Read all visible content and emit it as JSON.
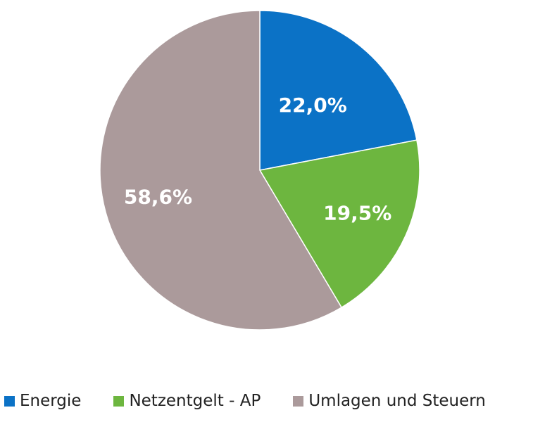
{
  "chart_data": {
    "type": "pie",
    "slices": [
      {
        "name": "Energie",
        "value": 22.0,
        "label": "22,0%",
        "color": "#0b72c6"
      },
      {
        "name": "Netzentgelt - AP",
        "value": 19.5,
        "label": "19,5%",
        "color": "#6db63f"
      },
      {
        "name": "Umlagen und Steuern",
        "value": 58.6,
        "label": "58,6%",
        "color": "#ab9a9b"
      }
    ],
    "start": "12 o'clock",
    "direction": "clockwise",
    "legend_position": "bottom"
  }
}
